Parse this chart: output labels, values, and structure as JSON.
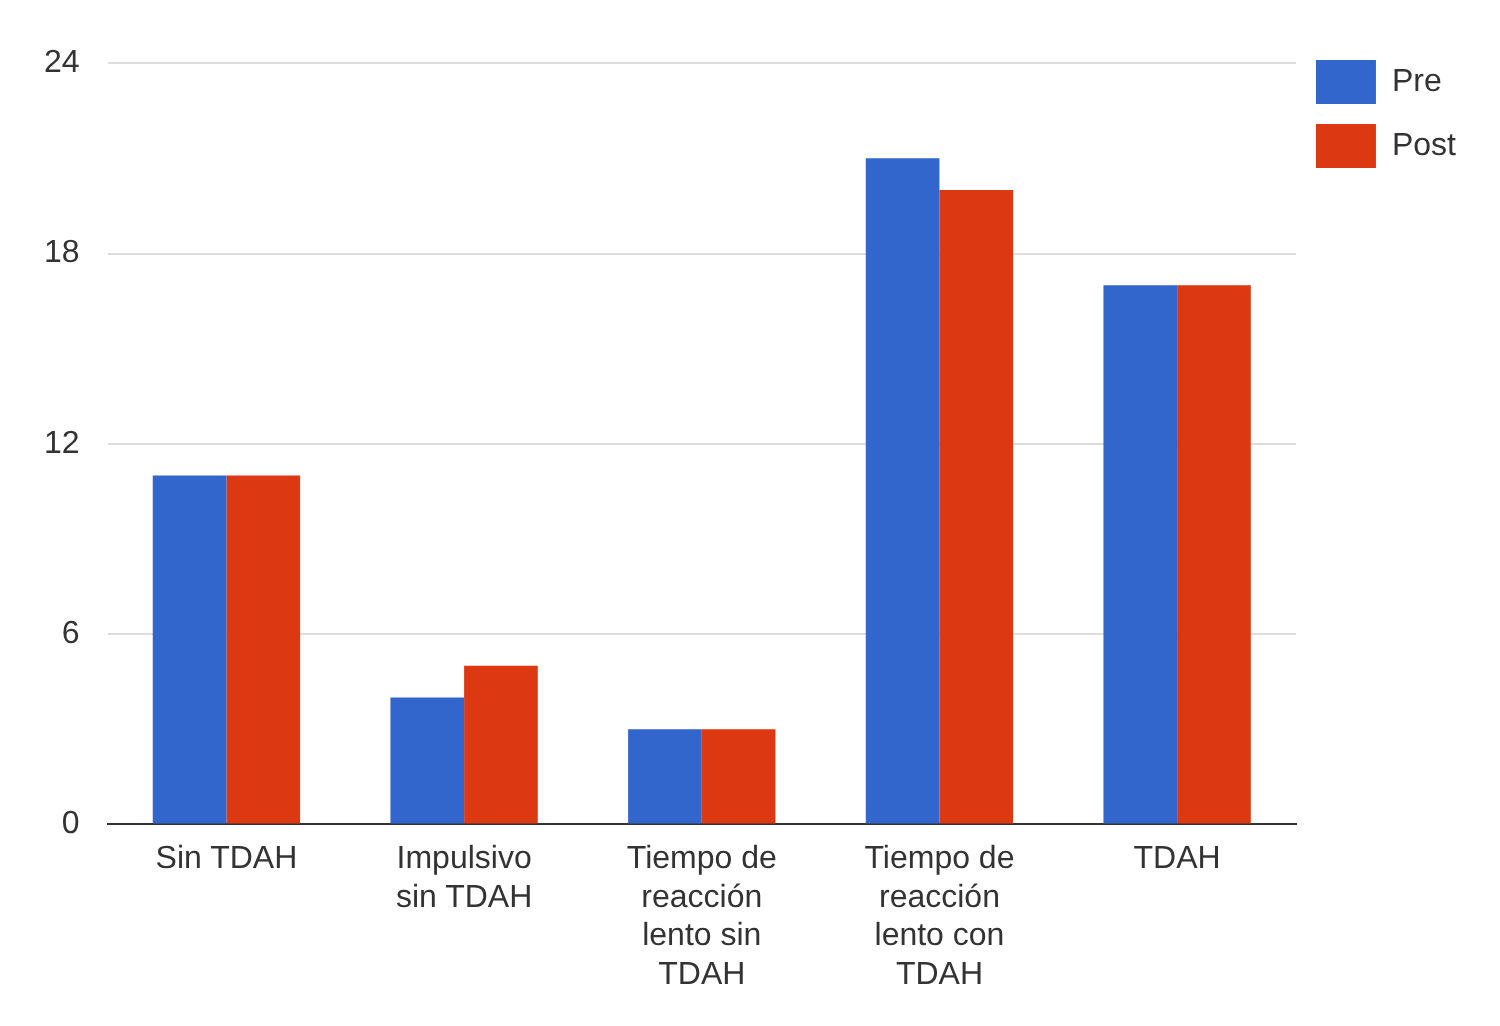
{
  "chart_data": {
    "type": "bar",
    "categories": [
      "Sin TDAH",
      "Impulsivo sin TDAH",
      "Tiempo de reacción lento sin TDAH",
      "Tiempo de reacción lento con TDAH",
      "TDAH"
    ],
    "series": [
      {
        "name": "Pre",
        "color": "#3366cc",
        "values": [
          11,
          4,
          3,
          21,
          17
        ]
      },
      {
        "name": "Post",
        "color": "#dc3912",
        "values": [
          11,
          5,
          3,
          20,
          17
        ]
      }
    ],
    "ylim": [
      0,
      24
    ],
    "yticks": [
      0,
      6,
      12,
      18,
      24
    ],
    "grid": "y",
    "legend": "top right"
  }
}
